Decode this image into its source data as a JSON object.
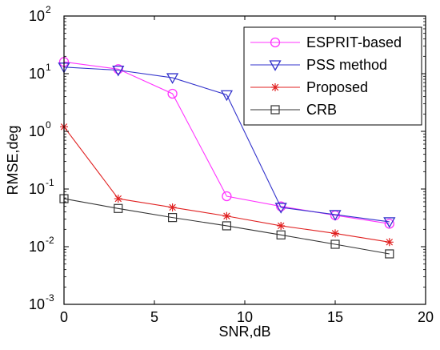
{
  "chart_data": {
    "type": "line",
    "xlabel": "SNR,dB",
    "ylabel": "RMSE,deg",
    "xlim": [
      0,
      20
    ],
    "ylim": [
      0.001,
      100
    ],
    "yscale": "log",
    "grid": false,
    "legend_position": "top-right",
    "x_ticks": [
      "0",
      "5",
      "10",
      "15",
      "20"
    ],
    "y_ticks": [
      {
        "base": "10",
        "exp": "-3"
      },
      {
        "base": "10",
        "exp": "-2"
      },
      {
        "base": "10",
        "exp": "-1"
      },
      {
        "base": "10",
        "exp": "0"
      },
      {
        "base": "10",
        "exp": "1"
      },
      {
        "base": "10",
        "exp": "2"
      }
    ],
    "x": [
      0,
      3,
      6,
      9,
      12,
      15,
      18
    ],
    "series": [
      {
        "name": "ESPRIT-based",
        "color": "#ff33ff",
        "marker": "circle",
        "values": [
          16,
          12,
          4.5,
          0.075,
          0.05,
          0.035,
          0.025
        ]
      },
      {
        "name": "PSS method",
        "color": "#3333cc",
        "marker": "triangle-down",
        "values": [
          13,
          11.5,
          8.5,
          4.3,
          0.048,
          0.036,
          0.027
        ]
      },
      {
        "name": "Proposed",
        "color": "#e02020",
        "marker": "asterisk",
        "values": [
          1.2,
          0.068,
          0.048,
          0.034,
          0.023,
          0.017,
          0.012
        ]
      },
      {
        "name": "CRB",
        "color": "#333333",
        "marker": "square",
        "values": [
          0.068,
          0.046,
          0.032,
          0.023,
          0.016,
          0.011,
          0.0075
        ]
      }
    ]
  }
}
